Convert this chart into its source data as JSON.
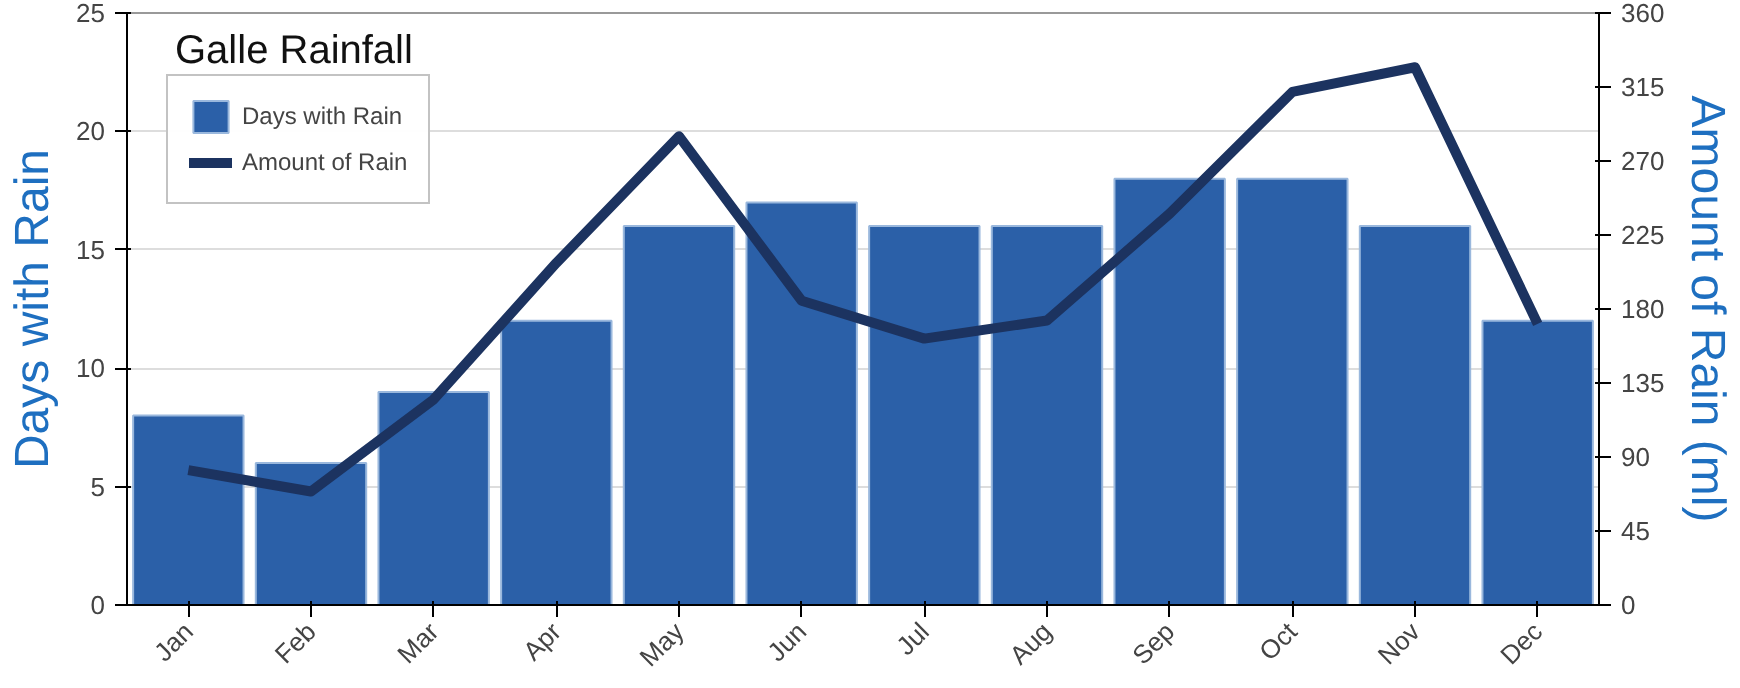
{
  "chart_data": {
    "type": "bar",
    "title": "Galle Rainfall",
    "ylabel": "Days with Rain",
    "y2label": "Amount of Rain (ml)",
    "categories": [
      "Jan",
      "Feb",
      "Mar",
      "Apr",
      "May",
      "Jun",
      "Jul",
      "Aug",
      "Sep",
      "Oct",
      "Nov",
      "Dec"
    ],
    "series": [
      {
        "name": "Days with Rain",
        "color": "#2b60a8",
        "values": [
          8,
          6,
          9,
          12,
          16,
          17,
          16,
          16,
          18,
          18,
          16,
          12
        ]
      },
      {
        "name": "Amount of Rain",
        "type": "line",
        "axis": "y2",
        "color": "#1c3360",
        "values": [
          82,
          69,
          125,
          208,
          285,
          185,
          162,
          173,
          238,
          312,
          327,
          171
        ]
      }
    ],
    "ylim": [
      0,
      25
    ],
    "yticks": [
      0,
      5,
      10,
      15,
      20,
      25
    ],
    "y2lim": [
      0,
      360
    ],
    "y2ticks": [
      0,
      45,
      90,
      135,
      180,
      225,
      270,
      315,
      360
    ],
    "grid": "y",
    "legend": "top left"
  }
}
